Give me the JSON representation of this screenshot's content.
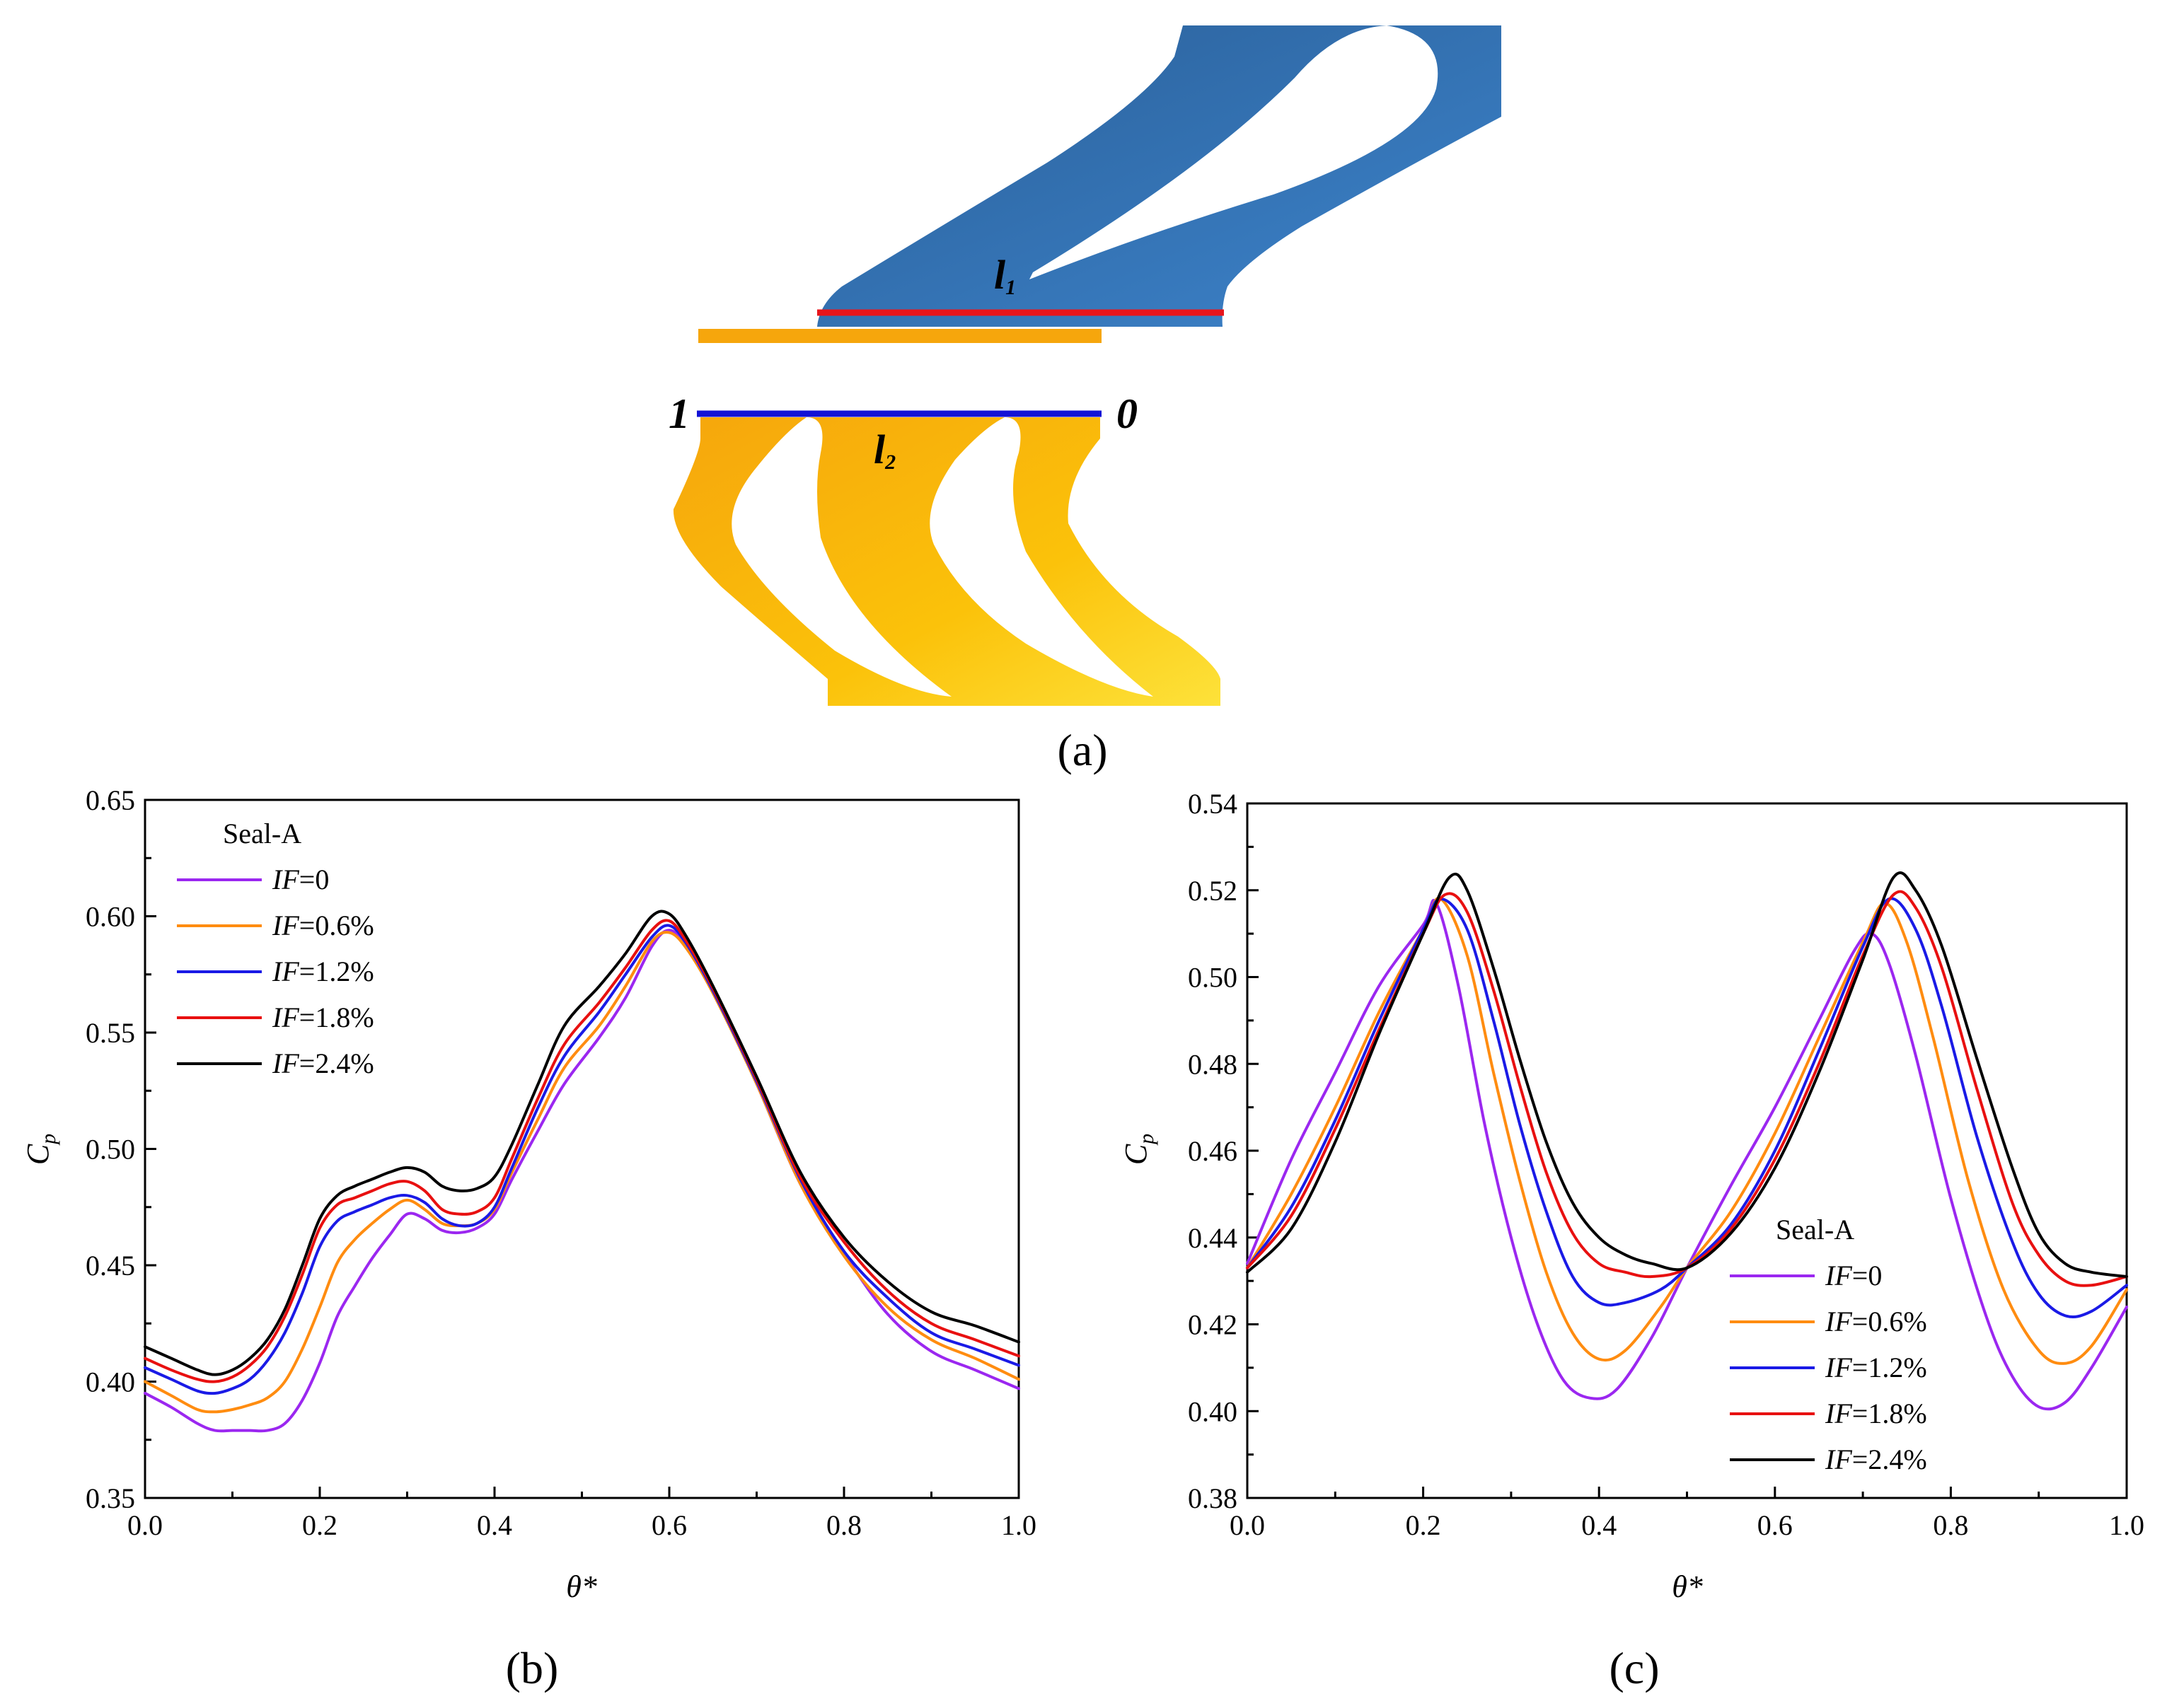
{
  "panel_a": {
    "label": "(a)",
    "line_upper": "l",
    "line_upper_sub": "1",
    "line_lower": "l",
    "line_lower_sub": "2",
    "end_left": "1",
    "end_right": "0",
    "colors": {
      "upper_blade": "#2f6aa6",
      "lower_blade": "#fbbf0a",
      "line_upper": "#e8151b",
      "line_lower": "#1313d6"
    }
  },
  "series_styles": {
    "colors": [
      "#9b27f0",
      "#ff8c10",
      "#1a1ae6",
      "#e81010",
      "#000000"
    ]
  },
  "chart_data": [
    {
      "type": "line",
      "panel_label": "(b)",
      "xlabel": "θ*",
      "ylabel": "Cp",
      "xlim": [
        0.0,
        1.0
      ],
      "ylim": [
        0.35,
        0.65
      ],
      "xticks": [
        "0.0",
        "0.2",
        "0.4",
        "0.6",
        "0.8",
        "1.0"
      ],
      "yticks": [
        "0.35",
        "0.40",
        "0.45",
        "0.50",
        "0.55",
        "0.60",
        "0.65"
      ],
      "legend_title": "Seal-A",
      "legend_position": "top-left",
      "series": [
        {
          "name": "IF=0",
          "legend_italic": "IF",
          "legend_rest": "=0",
          "x": [
            0,
            0.03,
            0.06,
            0.08,
            0.1,
            0.12,
            0.14,
            0.16,
            0.18,
            0.2,
            0.22,
            0.24,
            0.26,
            0.28,
            0.3,
            0.32,
            0.34,
            0.36,
            0.38,
            0.4,
            0.42,
            0.45,
            0.48,
            0.52,
            0.55,
            0.58,
            0.6,
            0.62,
            0.65,
            0.7,
            0.75,
            0.8,
            0.85,
            0.9,
            0.95,
            1.0
          ],
          "y": [
            0.395,
            0.389,
            0.382,
            0.379,
            0.379,
            0.379,
            0.379,
            0.382,
            0.392,
            0.408,
            0.428,
            0.441,
            0.453,
            0.463,
            0.472,
            0.47,
            0.465,
            0.464,
            0.466,
            0.472,
            0.487,
            0.508,
            0.528,
            0.548,
            0.565,
            0.587,
            0.594,
            0.587,
            0.568,
            0.528,
            0.485,
            0.455,
            0.429,
            0.413,
            0.405,
            0.397
          ]
        },
        {
          "name": "IF=0.6%",
          "legend_italic": "IF",
          "legend_rest": "=0.6%",
          "x": [
            0,
            0.03,
            0.06,
            0.08,
            0.1,
            0.12,
            0.14,
            0.16,
            0.18,
            0.2,
            0.22,
            0.24,
            0.26,
            0.28,
            0.3,
            0.32,
            0.34,
            0.36,
            0.38,
            0.4,
            0.42,
            0.45,
            0.48,
            0.52,
            0.55,
            0.58,
            0.6,
            0.62,
            0.65,
            0.7,
            0.75,
            0.8,
            0.85,
            0.9,
            0.95,
            1.0
          ],
          "y": [
            0.4,
            0.394,
            0.388,
            0.387,
            0.388,
            0.39,
            0.393,
            0.4,
            0.414,
            0.432,
            0.451,
            0.461,
            0.468,
            0.474,
            0.478,
            0.474,
            0.468,
            0.467,
            0.468,
            0.474,
            0.49,
            0.513,
            0.535,
            0.553,
            0.57,
            0.589,
            0.593,
            0.586,
            0.567,
            0.528,
            0.485,
            0.454,
            0.432,
            0.418,
            0.41,
            0.401
          ]
        },
        {
          "name": "IF=1.2%",
          "legend_italic": "IF",
          "legend_rest": "=1.2%",
          "x": [
            0,
            0.03,
            0.06,
            0.08,
            0.1,
            0.12,
            0.14,
            0.16,
            0.18,
            0.2,
            0.22,
            0.24,
            0.26,
            0.28,
            0.3,
            0.32,
            0.34,
            0.36,
            0.38,
            0.4,
            0.42,
            0.45,
            0.48,
            0.52,
            0.55,
            0.58,
            0.6,
            0.62,
            0.65,
            0.7,
            0.75,
            0.8,
            0.85,
            0.9,
            0.95,
            1.0
          ],
          "y": [
            0.406,
            0.401,
            0.396,
            0.395,
            0.397,
            0.401,
            0.409,
            0.421,
            0.438,
            0.458,
            0.469,
            0.473,
            0.476,
            0.479,
            0.48,
            0.477,
            0.47,
            0.467,
            0.468,
            0.475,
            0.492,
            0.518,
            0.54,
            0.559,
            0.575,
            0.591,
            0.596,
            0.588,
            0.568,
            0.529,
            0.487,
            0.456,
            0.436,
            0.421,
            0.414,
            0.407
          ]
        },
        {
          "name": "IF=1.8%",
          "legend_italic": "IF",
          "legend_rest": "=1.8%",
          "x": [
            0,
            0.03,
            0.06,
            0.08,
            0.1,
            0.12,
            0.14,
            0.16,
            0.18,
            0.2,
            0.22,
            0.24,
            0.26,
            0.28,
            0.3,
            0.32,
            0.34,
            0.36,
            0.38,
            0.4,
            0.42,
            0.45,
            0.48,
            0.52,
            0.55,
            0.58,
            0.6,
            0.62,
            0.65,
            0.7,
            0.75,
            0.8,
            0.85,
            0.9,
            0.95,
            1.0
          ],
          "y": [
            0.41,
            0.405,
            0.401,
            0.4,
            0.402,
            0.407,
            0.415,
            0.428,
            0.446,
            0.466,
            0.476,
            0.479,
            0.482,
            0.485,
            0.486,
            0.482,
            0.474,
            0.472,
            0.473,
            0.479,
            0.496,
            0.522,
            0.545,
            0.563,
            0.578,
            0.594,
            0.598,
            0.589,
            0.569,
            0.53,
            0.488,
            0.46,
            0.439,
            0.425,
            0.418,
            0.411
          ]
        },
        {
          "name": "IF=2.4%",
          "legend_italic": "IF",
          "legend_rest": "=2.4%",
          "x": [
            0,
            0.03,
            0.06,
            0.08,
            0.1,
            0.12,
            0.14,
            0.16,
            0.18,
            0.2,
            0.22,
            0.24,
            0.26,
            0.28,
            0.3,
            0.32,
            0.34,
            0.36,
            0.38,
            0.4,
            0.42,
            0.45,
            0.48,
            0.52,
            0.55,
            0.58,
            0.6,
            0.62,
            0.65,
            0.7,
            0.75,
            0.8,
            0.85,
            0.9,
            0.95,
            1.0
          ],
          "y": [
            0.415,
            0.41,
            0.405,
            0.403,
            0.405,
            0.41,
            0.418,
            0.431,
            0.45,
            0.47,
            0.48,
            0.484,
            0.487,
            0.49,
            0.492,
            0.49,
            0.484,
            0.482,
            0.483,
            0.488,
            0.502,
            0.528,
            0.553,
            0.57,
            0.584,
            0.6,
            0.601,
            0.591,
            0.57,
            0.531,
            0.49,
            0.462,
            0.443,
            0.43,
            0.424,
            0.417
          ]
        }
      ]
    },
    {
      "type": "line",
      "panel_label": "(c)",
      "xlabel": "θ*",
      "ylabel": "Cp",
      "xlim": [
        0.0,
        1.0
      ],
      "ylim": [
        0.38,
        0.54
      ],
      "xticks": [
        "0.0",
        "0.2",
        "0.4",
        "0.6",
        "0.8",
        "1.0"
      ],
      "yticks": [
        "0.38",
        "0.40",
        "0.42",
        "0.44",
        "0.46",
        "0.48",
        "0.50",
        "0.52",
        "0.54"
      ],
      "legend_title": "Seal-A",
      "legend_position": "bottom-right",
      "series": [
        {
          "name": "IF=0",
          "legend_italic": "IF",
          "legend_rest": "=0",
          "x": [
            0,
            0.05,
            0.1,
            0.15,
            0.2,
            0.215,
            0.24,
            0.27,
            0.3,
            0.33,
            0.36,
            0.39,
            0.42,
            0.46,
            0.5,
            0.55,
            0.6,
            0.65,
            0.69,
            0.71,
            0.73,
            0.76,
            0.8,
            0.84,
            0.87,
            0.9,
            0.93,
            0.96,
            1.0
          ],
          "y": [
            0.434,
            0.458,
            0.478,
            0.498,
            0.512,
            0.517,
            0.498,
            0.466,
            0.44,
            0.42,
            0.407,
            0.403,
            0.405,
            0.417,
            0.433,
            0.452,
            0.47,
            0.49,
            0.506,
            0.51,
            0.503,
            0.482,
            0.449,
            0.422,
            0.408,
            0.401,
            0.402,
            0.41,
            0.424
          ]
        },
        {
          "name": "IF=0.6%",
          "legend_italic": "IF",
          "legend_rest": "=0.6%",
          "x": [
            0,
            0.05,
            0.1,
            0.15,
            0.2,
            0.22,
            0.25,
            0.28,
            0.31,
            0.34,
            0.37,
            0.4,
            0.43,
            0.47,
            0.5,
            0.55,
            0.6,
            0.65,
            0.7,
            0.725,
            0.75,
            0.78,
            0.82,
            0.86,
            0.9,
            0.93,
            0.96,
            1.0
          ],
          "y": [
            0.433,
            0.45,
            0.47,
            0.492,
            0.511,
            0.518,
            0.505,
            0.478,
            0.453,
            0.432,
            0.418,
            0.412,
            0.414,
            0.424,
            0.433,
            0.446,
            0.464,
            0.486,
            0.508,
            0.517,
            0.508,
            0.486,
            0.453,
            0.428,
            0.414,
            0.411,
            0.415,
            0.428
          ]
        },
        {
          "name": "IF=1.2%",
          "legend_italic": "IF",
          "legend_rest": "=1.2%",
          "x": [
            0,
            0.05,
            0.1,
            0.15,
            0.2,
            0.22,
            0.25,
            0.28,
            0.31,
            0.34,
            0.37,
            0.4,
            0.43,
            0.47,
            0.5,
            0.55,
            0.6,
            0.65,
            0.7,
            0.73,
            0.76,
            0.79,
            0.83,
            0.87,
            0.9,
            0.93,
            0.96,
            1.0
          ],
          "y": [
            0.433,
            0.447,
            0.467,
            0.49,
            0.511,
            0.518,
            0.511,
            0.49,
            0.466,
            0.446,
            0.431,
            0.425,
            0.425,
            0.428,
            0.433,
            0.443,
            0.46,
            0.483,
            0.507,
            0.518,
            0.511,
            0.493,
            0.463,
            0.439,
            0.427,
            0.422,
            0.423,
            0.429
          ]
        },
        {
          "name": "IF=1.8%",
          "legend_italic": "IF",
          "legend_rest": "=1.8%",
          "x": [
            0,
            0.05,
            0.1,
            0.15,
            0.2,
            0.225,
            0.25,
            0.28,
            0.31,
            0.34,
            0.37,
            0.4,
            0.43,
            0.46,
            0.5,
            0.55,
            0.6,
            0.65,
            0.7,
            0.735,
            0.76,
            0.79,
            0.83,
            0.87,
            0.9,
            0.93,
            0.96,
            1.0
          ],
          "y": [
            0.433,
            0.445,
            0.465,
            0.488,
            0.51,
            0.519,
            0.515,
            0.497,
            0.475,
            0.455,
            0.441,
            0.434,
            0.432,
            0.431,
            0.433,
            0.442,
            0.458,
            0.48,
            0.505,
            0.519,
            0.516,
            0.502,
            0.474,
            0.448,
            0.436,
            0.43,
            0.429,
            0.431
          ]
        },
        {
          "name": "IF=2.4%",
          "legend_italic": "IF",
          "legend_rest": "=2.4%",
          "x": [
            0,
            0.05,
            0.1,
            0.15,
            0.2,
            0.23,
            0.25,
            0.28,
            0.31,
            0.34,
            0.37,
            0.4,
            0.43,
            0.46,
            0.5,
            0.55,
            0.6,
            0.65,
            0.7,
            0.735,
            0.76,
            0.79,
            0.83,
            0.87,
            0.9,
            0.93,
            0.96,
            1.0
          ],
          "y": [
            0.432,
            0.442,
            0.462,
            0.487,
            0.51,
            0.523,
            0.52,
            0.502,
            0.481,
            0.462,
            0.448,
            0.44,
            0.436,
            0.434,
            0.433,
            0.441,
            0.456,
            0.478,
            0.504,
            0.523,
            0.52,
            0.507,
            0.481,
            0.456,
            0.441,
            0.434,
            0.432,
            0.431
          ]
        }
      ]
    }
  ]
}
